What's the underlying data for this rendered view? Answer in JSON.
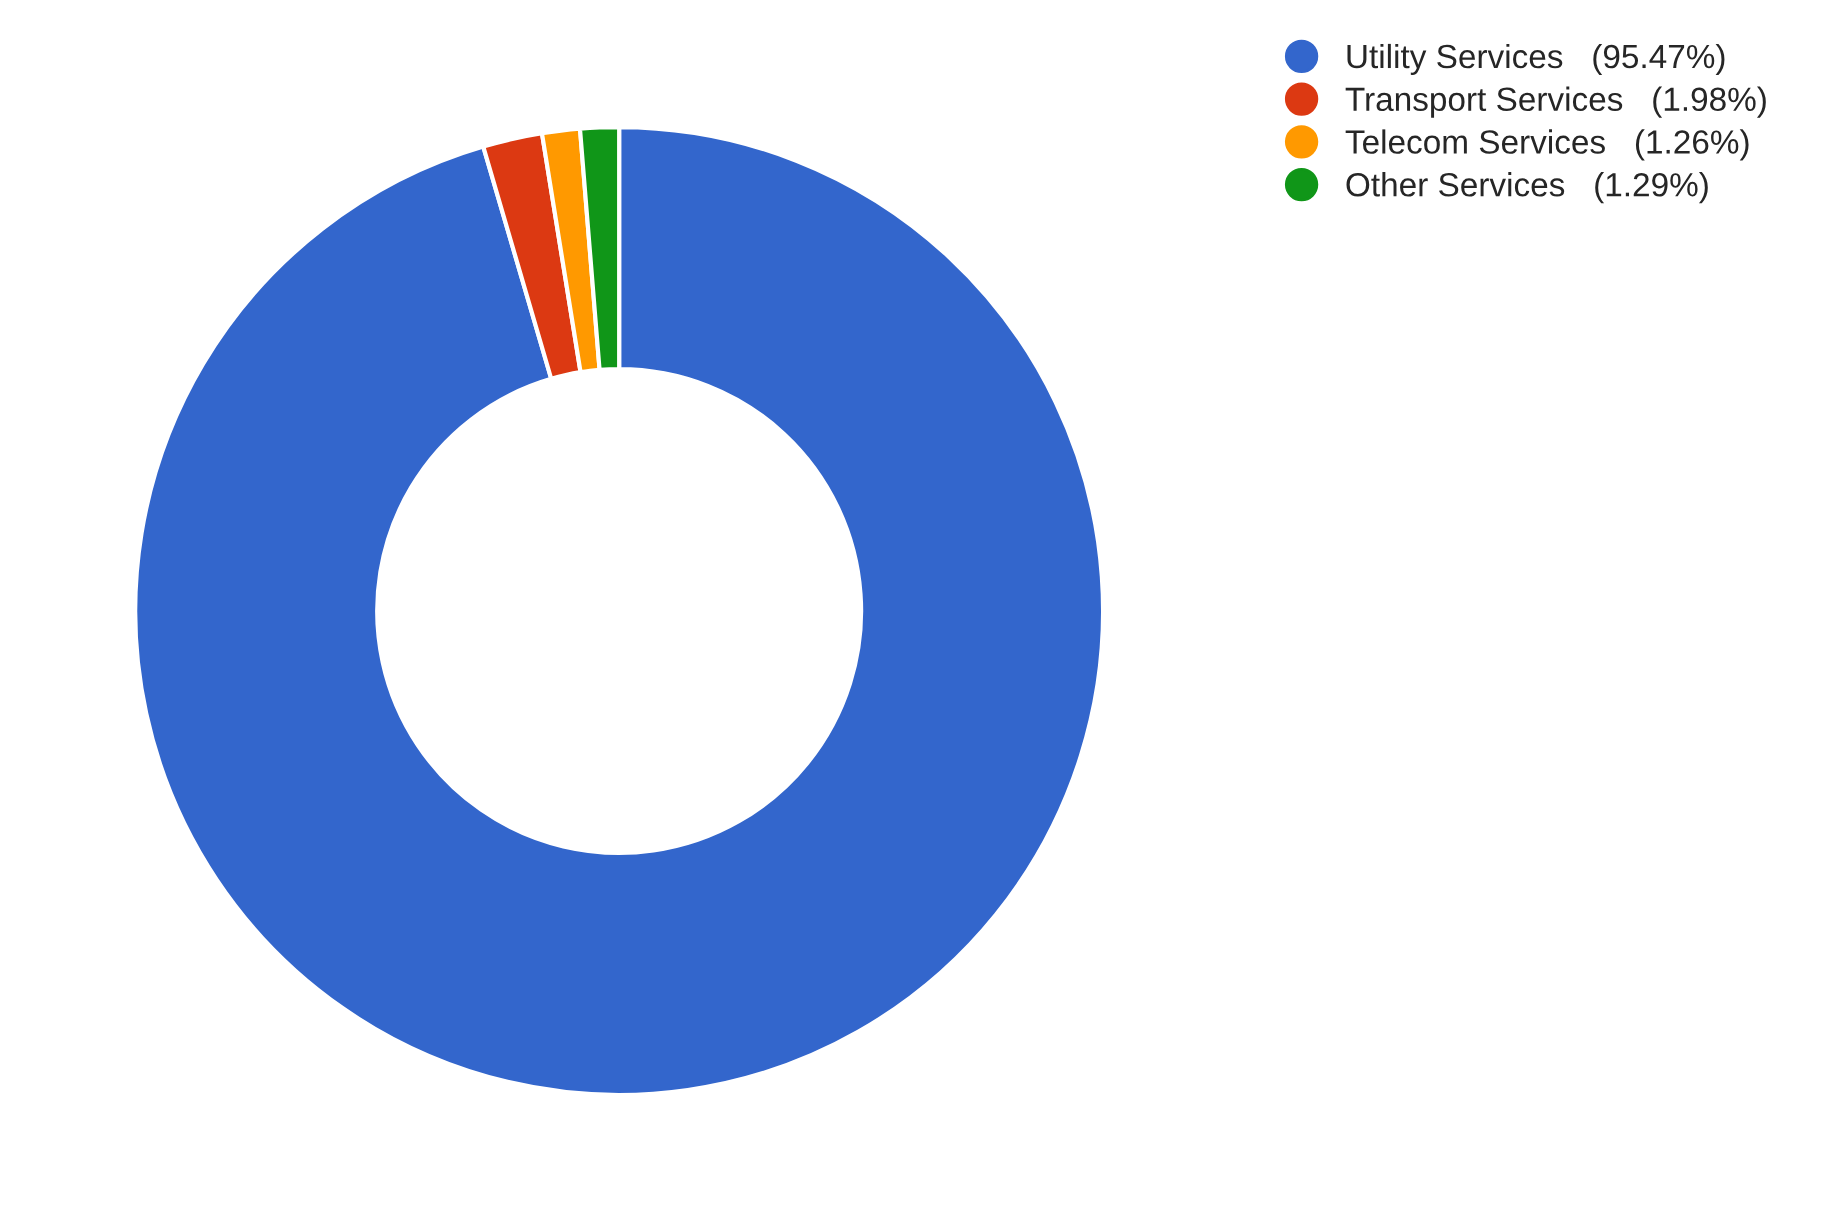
{
  "chart_data": {
    "type": "donut",
    "categories": [
      "Utility Services",
      "Transport Services",
      "Telecom Services",
      "Other Services"
    ],
    "values": [
      95.47,
      1.98,
      1.26,
      1.29
    ],
    "value_labels": [
      "(95.47%)",
      "(1.98%)",
      "(1.26%)",
      "(1.29%)"
    ],
    "colors": [
      "#3366cc",
      "#dc3912",
      "#ff9900",
      "#109618"
    ],
    "legend": "top right"
  }
}
